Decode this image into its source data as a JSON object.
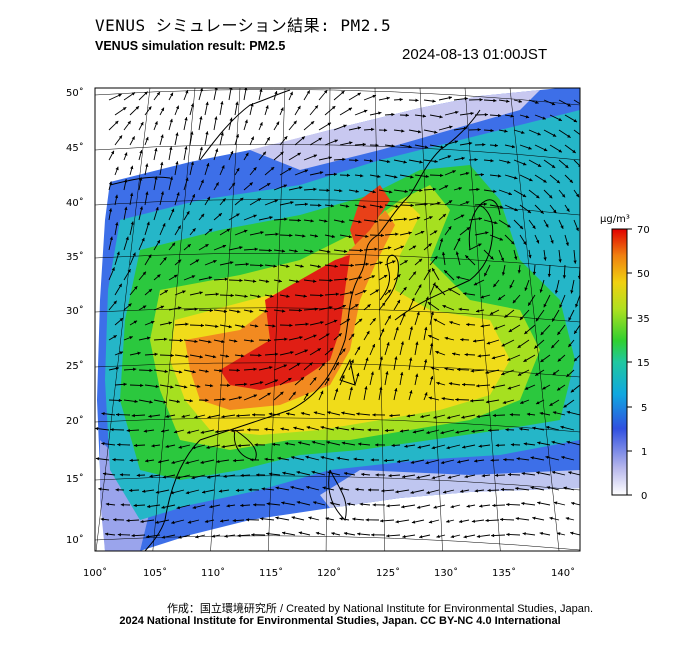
{
  "header": {
    "title_jp": "VENUS シミュレーション結果: PM2.5",
    "title_en": "VENUS simulation result: PM2.5",
    "timestamp": "2024-08-13 01:00JST"
  },
  "map": {
    "lon_ticks": [
      "100˚",
      "105˚",
      "110˚",
      "115˚",
      "120˚",
      "125˚",
      "130˚",
      "135˚",
      "140˚"
    ],
    "lat_ticks": [
      "50˚",
      "45˚",
      "40˚",
      "35˚",
      "30˚",
      "25˚",
      "20˚",
      "15˚",
      "10˚"
    ],
    "colors": {
      "very_low": "#dcdcf5",
      "low": "#3a64e0",
      "mid_low": "#1fb8c8",
      "mid": "#22c83a",
      "mid_high": "#9ae01e",
      "high": "#f0e01a",
      "very_high": "#f07820",
      "max": "#e01010"
    }
  },
  "colorbar": {
    "unit": "μg/m³",
    "labels": [
      "70",
      "50",
      "35",
      "15",
      "5",
      "1",
      "0"
    ]
  },
  "credits": {
    "line1": "作成：国立環境研究所 / Created by National Institute for Environmental Studies, Japan.",
    "line2": "2024 National Institute for Environmental Studies, Japan. CC BY-NC 4.0 International"
  }
}
